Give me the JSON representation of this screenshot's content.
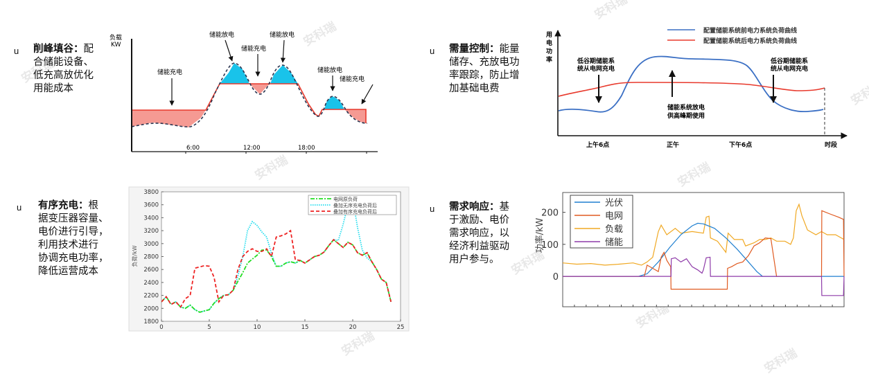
{
  "watermark": "安科瑞",
  "bullet": "u",
  "blocks": [
    {
      "title": "削峰填谷：",
      "lines": [
        "配",
        "合储能设备、",
        "低充高放优化",
        "用能成本"
      ]
    },
    {
      "title": "需量控制：",
      "lines": [
        "能量",
        "储存、充放电功",
        "率跟踪，防止增",
        "加基础电费"
      ]
    },
    {
      "title": "有序充电：",
      "lines": [
        "根",
        "据变压器容量、",
        "电价进行引导，",
        "利用技术进行",
        "协调充电功率，",
        "降低运营成本"
      ]
    },
    {
      "title": "需求响应：",
      "lines": [
        "基",
        "于激励、电价",
        "需求响应，以",
        "经济利益驱动",
        "用户参与。"
      ]
    }
  ],
  "peak_valley": {
    "y_label_1": "负载",
    "y_label_2": "KW",
    "discharge": "储能放电",
    "charge": "储能充电",
    "ticks": [
      "6:00",
      "12:00",
      "18:00"
    ],
    "colors": {
      "discharge": "#19c3ea",
      "charge": "#f59a93",
      "line": "#e8392c"
    }
  },
  "demand_control": {
    "y_label": [
      "用",
      "电",
      "功",
      "率"
    ],
    "legend": [
      "配置储能系统前电力系统负荷曲线",
      "配置储能系统后电力系统负荷曲线"
    ],
    "note_left": [
      "低谷期储能系",
      "统从电网充电"
    ],
    "note_mid": [
      "储能系统放电",
      "供高峰期使用"
    ],
    "note_right": [
      "低谷期储能系",
      "统从电网充电"
    ],
    "x_labels": [
      "上午6点",
      "正午",
      "下午6点",
      "时段"
    ],
    "colors": {
      "before": "#3a6fc4",
      "after": "#e8392c"
    }
  },
  "chart_data": [
    {
      "type": "line",
      "title": "",
      "xlabel": "",
      "ylabel": "负荷/kW",
      "xlim": [
        0,
        25
      ],
      "ylim": [
        1800,
        3800
      ],
      "xticks": [
        "0",
        "5",
        "10",
        "15",
        "20",
        "25"
      ],
      "yticks": [
        "1800",
        "2000",
        "2200",
        "2400",
        "2600",
        "2800",
        "3000",
        "3200",
        "3400",
        "3600",
        "3800"
      ],
      "legend_position": "top-right",
      "x": [
        0,
        0.5,
        1,
        1.5,
        2,
        2.5,
        3,
        3.5,
        4,
        4.5,
        5,
        5.5,
        6,
        6.5,
        7,
        7.5,
        8,
        8.5,
        9,
        9.5,
        10,
        10.5,
        11,
        11.5,
        12,
        12.5,
        13,
        13.5,
        14,
        14.5,
        15,
        15.5,
        16,
        16.5,
        17,
        17.5,
        18,
        18.5,
        19,
        19.5,
        20,
        20.5,
        21,
        21.5,
        22,
        22.5,
        23,
        23.5,
        24
      ],
      "series": [
        {
          "name": "电网原负荷",
          "color": "#22dd22",
          "dash": "dashdot",
          "values": [
            2100,
            2180,
            2060,
            2100,
            2020,
            2000,
            2050,
            1980,
            1940,
            1960,
            1980,
            2080,
            2150,
            2200,
            2210,
            2280,
            2420,
            2550,
            2700,
            2760,
            2820,
            2900,
            2900,
            2800,
            2650,
            2650,
            2700,
            2720,
            2700,
            2740,
            2700,
            2750,
            2800,
            2820,
            2870,
            2970,
            3060,
            3000,
            2940,
            3020,
            2980,
            2860,
            2820,
            2860,
            2720,
            2600,
            2450,
            2400,
            2100
          ]
        },
        {
          "name": "叠加无序充电负荷后",
          "color": "#22ddee",
          "dash": "dot",
          "values": [
            2100,
            2180,
            2060,
            2100,
            2020,
            2000,
            2050,
            1980,
            1940,
            1960,
            1980,
            2080,
            2150,
            2200,
            2210,
            2280,
            2500,
            2800,
            3200,
            3340,
            3280,
            3180,
            3100,
            2850,
            2650,
            2650,
            2700,
            2720,
            2700,
            2740,
            2700,
            2750,
            2800,
            2820,
            2870,
            2970,
            3060,
            3050,
            3300,
            3600,
            3700,
            3250,
            2900,
            2780,
            2720,
            2600,
            2450,
            2400,
            2100
          ]
        },
        {
          "name": "叠加有序充电负荷后",
          "color": "#ee2222",
          "dash": "dash",
          "values": [
            2100,
            2180,
            2060,
            2100,
            2020,
            2150,
            2200,
            2620,
            2640,
            2660,
            2650,
            2480,
            2100,
            2200,
            2210,
            2280,
            2600,
            2800,
            2880,
            2920,
            2880,
            2880,
            2920,
            2800,
            3100,
            3120,
            3150,
            3200,
            2750,
            2740,
            2700,
            2750,
            2800,
            2820,
            2870,
            2970,
            3060,
            3000,
            2940,
            3020,
            2980,
            2860,
            2820,
            2860,
            2720,
            2600,
            2450,
            2400,
            2100
          ]
        }
      ]
    },
    {
      "type": "line",
      "title": "",
      "xlabel": "",
      "ylabel": "功率/kW",
      "xlim": [
        0,
        100
      ],
      "ylim": [
        -95,
        262
      ],
      "yticks": [
        "0",
        "100",
        "200"
      ],
      "legend_position": "top-left",
      "series": [
        {
          "name": "光伏",
          "color": "#1f7fd0",
          "points": [
            [
              0,
              0
            ],
            [
              27,
              0
            ],
            [
              30,
              8
            ],
            [
              34,
              45
            ],
            [
              38,
              90
            ],
            [
              42,
              130
            ],
            [
              46,
              158
            ],
            [
              48,
              166
            ],
            [
              50,
              164
            ],
            [
              54,
              150
            ],
            [
              58,
              120
            ],
            [
              62,
              85
            ],
            [
              66,
              45
            ],
            [
              69,
              15
            ],
            [
              71,
              0
            ],
            [
              100,
              0
            ]
          ]
        },
        {
          "name": "电网",
          "color": "#e05a20",
          "points": [
            [
              0,
              0
            ],
            [
              29,
              0
            ],
            [
              30,
              35
            ],
            [
              32,
              25
            ],
            [
              34,
              15
            ],
            [
              35,
              60
            ],
            [
              36,
              75
            ],
            [
              37,
              50
            ],
            [
              38.4,
              30
            ],
            [
              38.5,
              -40
            ],
            [
              58.5,
              -40
            ],
            [
              58.6,
              25
            ],
            [
              60,
              30
            ],
            [
              62,
              40
            ],
            [
              64,
              45
            ],
            [
              66,
              65
            ],
            [
              68,
              95
            ],
            [
              70,
              105
            ],
            [
              72,
              120
            ],
            [
              74,
              118
            ],
            [
              76,
              0
            ],
            [
              92,
              0
            ],
            [
              92.1,
              205
            ],
            [
              95,
              195
            ],
            [
              98,
              185
            ],
            [
              99.8,
              178
            ],
            [
              100,
              0
            ]
          ]
        },
        {
          "name": "负载",
          "color": "#f0a822",
          "points": [
            [
              0,
              42
            ],
            [
              5,
              38
            ],
            [
              10,
              40
            ],
            [
              15,
              35
            ],
            [
              20,
              38
            ],
            [
              25,
              42
            ],
            [
              28,
              35
            ],
            [
              30,
              45
            ],
            [
              32,
              60
            ],
            [
              34,
              140
            ],
            [
              35,
              160
            ],
            [
              37,
              130
            ],
            [
              40,
              150
            ],
            [
              42,
              135
            ],
            [
              46,
              140
            ],
            [
              50,
              135
            ],
            [
              51,
              185
            ],
            [
              52,
              188
            ],
            [
              52.5,
              120
            ],
            [
              55,
              110
            ],
            [
              58,
              75
            ],
            [
              58.8,
              135
            ],
            [
              61,
              115
            ],
            [
              64,
              115
            ],
            [
              65,
              95
            ],
            [
              68,
              105
            ],
            [
              70,
              115
            ],
            [
              72,
              115
            ],
            [
              74,
              120
            ],
            [
              76,
              110
            ],
            [
              79,
              110
            ],
            [
              81,
              100
            ],
            [
              82,
              120
            ],
            [
              83,
              205
            ],
            [
              84,
              225
            ],
            [
              85,
              190
            ],
            [
              87,
              145
            ],
            [
              90,
              130
            ],
            [
              92,
              140
            ],
            [
              94,
              130
            ],
            [
              97,
              130
            ],
            [
              100,
              115
            ]
          ]
        },
        {
          "name": "储能",
          "color": "#8e3aa8",
          "points": [
            [
              0,
              0
            ],
            [
              38.5,
              0
            ],
            [
              38.6,
              55
            ],
            [
              40,
              58
            ],
            [
              42,
              45
            ],
            [
              44,
              55
            ],
            [
              46,
              30
            ],
            [
              48,
              20
            ],
            [
              49.5,
              10
            ],
            [
              50,
              20
            ],
            [
              51,
              58
            ],
            [
              52.4,
              60
            ],
            [
              52.5,
              0
            ],
            [
              92,
              0
            ],
            [
              92.1,
              -60
            ],
            [
              99.8,
              -60
            ],
            [
              100,
              0
            ]
          ]
        }
      ]
    }
  ]
}
